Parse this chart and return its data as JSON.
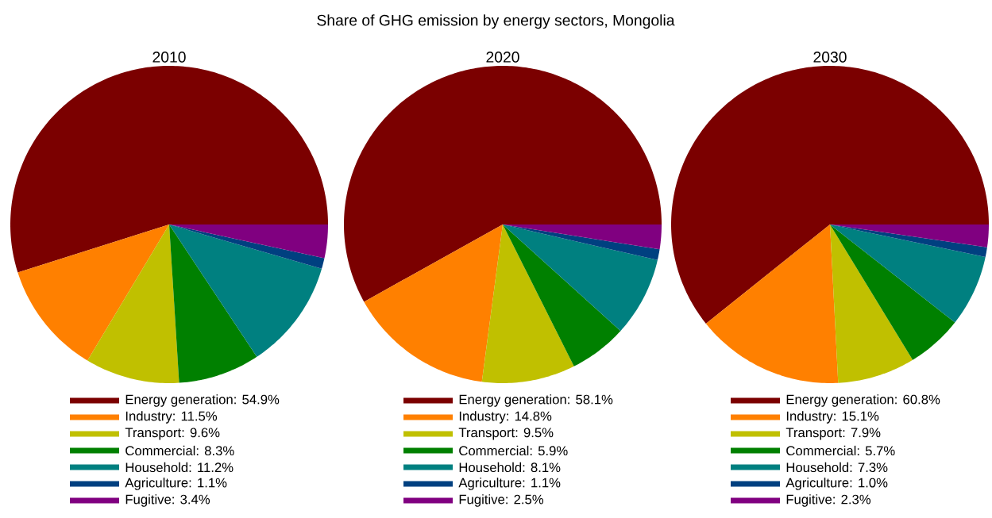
{
  "chart_data": [
    {
      "type": "pie",
      "title": "2010",
      "annotations": [
        "Share of  GHG emission by energy sectors, Mongolia"
      ],
      "categories": [
        "Energy generation: 54.9%",
        "Industry: 11.5%",
        "Transport: 9.6%",
        "Commercial: 8.3%",
        "Household: 11.2%",
        "Agriculture: 1.1%",
        "Fugitive: 3.4%"
      ],
      "values": [
        54.9,
        11.5,
        9.6,
        8.3,
        11.2,
        1.1,
        3.4
      ],
      "colors": [
        "#7b0000",
        "#ff8000",
        "#c0c000",
        "#008000",
        "#008080",
        "#004080",
        "#800080"
      ],
      "legend": "bottom"
    },
    {
      "type": "pie",
      "title": "2020",
      "categories": [
        "Energy generation: 58.1%",
        "Industry: 14.8%",
        "Transport: 9.5%",
        "Commercial: 5.9%",
        "Household: 8.1%",
        "Agriculture: 1.1%",
        "Fugitive: 2.5%"
      ],
      "values": [
        58.1,
        14.8,
        9.5,
        5.9,
        8.1,
        1.1,
        2.5
      ],
      "colors": [
        "#7b0000",
        "#ff8000",
        "#c0c000",
        "#008000",
        "#008080",
        "#004080",
        "#800080"
      ],
      "legend": "bottom"
    },
    {
      "type": "pie",
      "title": "2030",
      "categories": [
        "Energy generation: 60.8%",
        "Industry: 15.1%",
        "Transport: 7.9%",
        "Commercial: 5.7%",
        "Household: 7.3%",
        "Agriculture: 1.0%",
        "Fugitive: 2.3%"
      ],
      "values": [
        60.8,
        15.1,
        7.9,
        5.7,
        7.3,
        1.0,
        2.3
      ],
      "colors": [
        "#7b0000",
        "#ff8000",
        "#c0c000",
        "#008000",
        "#008080",
        "#004080",
        "#800080"
      ],
      "legend": "bottom"
    }
  ]
}
